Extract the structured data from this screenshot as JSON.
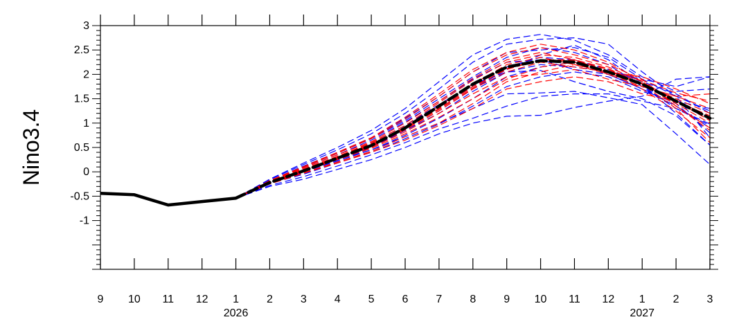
{
  "chart_data": {
    "type": "line",
    "ylabel": "Nino3.4",
    "xlabel": "",
    "title": "",
    "ylim": [
      -2.0,
      3.0
    ],
    "x_tick_labels": [
      "9",
      "10",
      "11",
      "12",
      "1",
      "2",
      "3",
      "4",
      "5",
      "6",
      "7",
      "8",
      "9",
      "10",
      "11",
      "12",
      "1",
      "2",
      "3"
    ],
    "year_labels": [
      {
        "text": "2026",
        "at_month_index": 4
      },
      {
        "text": "2027",
        "at_month_index": 16
      }
    ],
    "y_tick_labels": [
      "3",
      "2.5",
      "2",
      "1.5",
      "1",
      "0.5",
      "0",
      "-0.5",
      "-1"
    ],
    "y_tick_values": [
      3,
      2.5,
      2,
      1.5,
      1,
      0.5,
      0,
      -0.5,
      -1
    ],
    "observed": {
      "month_index": [
        0,
        1,
        2,
        3,
        4
      ],
      "values": [
        -0.44,
        -0.47,
        -0.68,
        -0.61,
        -0.54
      ],
      "color": "#000000"
    },
    "ensemble_mean": {
      "month_index": [
        4,
        5,
        6,
        7,
        8,
        9,
        10,
        11,
        12,
        13,
        14,
        15,
        16,
        17,
        18
      ],
      "values": [
        -0.54,
        -0.22,
        0.02,
        0.28,
        0.54,
        0.9,
        1.35,
        1.8,
        2.15,
        2.28,
        2.25,
        2.05,
        1.8,
        1.45,
        1.1
      ],
      "color": "#000000"
    },
    "colors": {
      "blue_members": "#0000ff",
      "red_members": "#ff0000"
    },
    "members": [
      {
        "color": "blue",
        "values": [
          -0.54,
          -0.3,
          -0.15,
          0.05,
          0.25,
          0.5,
          0.78,
          1.0,
          1.14,
          1.16,
          1.32,
          1.45,
          1.55,
          1.9,
          1.95
        ]
      },
      {
        "color": "blue",
        "values": [
          -0.54,
          -0.28,
          -0.1,
          0.12,
          0.35,
          0.6,
          0.88,
          1.1,
          1.35,
          1.55,
          1.6,
          1.6,
          1.45,
          1.3,
          0.98
        ]
      },
      {
        "color": "blue",
        "values": [
          -0.54,
          -0.25,
          0.0,
          0.22,
          0.45,
          0.72,
          1.0,
          1.3,
          1.6,
          1.62,
          1.65,
          1.52,
          1.38,
          0.78,
          0.15
        ]
      },
      {
        "color": "blue",
        "values": [
          -0.54,
          -0.22,
          0.05,
          0.3,
          0.6,
          0.95,
          1.38,
          1.8,
          2.05,
          2.08,
          1.85,
          1.65,
          1.5,
          1.15,
          0.55
        ]
      },
      {
        "color": "blue",
        "values": [
          -0.54,
          -0.2,
          0.08,
          0.35,
          0.65,
          1.02,
          1.45,
          1.9,
          2.25,
          2.3,
          2.1,
          2.0,
          1.7,
          1.4,
          0.8
        ]
      },
      {
        "color": "blue",
        "values": [
          -0.54,
          -0.18,
          0.12,
          0.4,
          0.7,
          1.1,
          1.55,
          2.05,
          2.45,
          2.5,
          2.55,
          2.35,
          1.9,
          1.75,
          1.95
        ]
      },
      {
        "color": "blue",
        "values": [
          -0.54,
          -0.16,
          0.15,
          0.45,
          0.78,
          1.2,
          1.7,
          2.25,
          2.62,
          2.72,
          2.75,
          2.62,
          2.05,
          1.55,
          1.25
        ]
      },
      {
        "color": "blue",
        "values": [
          -0.54,
          -0.15,
          0.18,
          0.5,
          0.85,
          1.3,
          1.85,
          2.4,
          2.72,
          2.82,
          2.7,
          2.4,
          1.95,
          1.65,
          1.7
        ]
      },
      {
        "color": "blue",
        "values": [
          -0.54,
          -0.22,
          0.0,
          0.25,
          0.45,
          0.75,
          1.1,
          1.5,
          1.95,
          2.15,
          2.25,
          2.0,
          1.7,
          1.35,
          0.9
        ]
      },
      {
        "color": "blue",
        "values": [
          -0.54,
          -0.2,
          0.04,
          0.28,
          0.52,
          0.85,
          1.25,
          1.7,
          2.1,
          2.4,
          2.6,
          2.3,
          1.8,
          1.2,
          0.55
        ]
      },
      {
        "color": "blue",
        "values": [
          -0.54,
          -0.24,
          -0.05,
          0.18,
          0.4,
          0.68,
          0.98,
          1.35,
          1.75,
          1.95,
          2.05,
          1.95,
          1.65,
          1.45,
          1.3
        ]
      },
      {
        "color": "blue",
        "values": [
          -0.54,
          -0.19,
          0.1,
          0.38,
          0.68,
          1.05,
          1.5,
          1.95,
          2.35,
          2.55,
          2.45,
          2.2,
          1.75,
          1.3,
          0.95
        ]
      },
      {
        "color": "blue",
        "values": [
          -0.54,
          -0.21,
          0.02,
          0.27,
          0.55,
          0.9,
          1.3,
          1.75,
          2.15,
          2.35,
          2.3,
          2.1,
          1.85,
          1.6,
          1.2
        ]
      },
      {
        "color": "blue",
        "values": [
          -0.54,
          -0.23,
          0.0,
          0.24,
          0.5,
          0.85,
          1.2,
          1.65,
          2.05,
          2.2,
          2.15,
          2.05,
          1.9,
          1.55,
          0.7
        ]
      },
      {
        "color": "red",
        "values": [
          -0.54,
          -0.22,
          0.03,
          0.28,
          0.5,
          0.82,
          1.2,
          1.6,
          1.95,
          2.0,
          2.1,
          1.9,
          1.75,
          1.55,
          1.6
        ]
      },
      {
        "color": "red",
        "values": [
          -0.54,
          -0.2,
          0.06,
          0.32,
          0.6,
          0.95,
          1.42,
          1.88,
          2.25,
          2.4,
          2.35,
          2.15,
          1.85,
          1.45,
          1.05
        ]
      },
      {
        "color": "red",
        "values": [
          -0.54,
          -0.18,
          0.1,
          0.38,
          0.68,
          1.08,
          1.55,
          2.05,
          2.4,
          2.55,
          2.4,
          2.2,
          1.9,
          1.35,
          0.85
        ]
      },
      {
        "color": "red",
        "values": [
          -0.54,
          -0.24,
          -0.02,
          0.2,
          0.42,
          0.72,
          1.0,
          1.4,
          1.85,
          2.05,
          2.2,
          2.05,
          1.95,
          1.7,
          1.4
        ]
      },
      {
        "color": "red",
        "values": [
          -0.54,
          -0.21,
          0.04,
          0.3,
          0.56,
          0.9,
          1.3,
          1.75,
          2.1,
          2.3,
          2.28,
          2.1,
          1.8,
          1.5,
          1.2
        ]
      },
      {
        "color": "red",
        "values": [
          -0.54,
          -0.19,
          0.08,
          0.35,
          0.62,
          1.0,
          1.45,
          1.92,
          2.3,
          2.45,
          2.3,
          2.05,
          1.7,
          1.25,
          0.7
        ]
      },
      {
        "color": "red",
        "values": [
          -0.54,
          -0.23,
          0.01,
          0.25,
          0.48,
          0.78,
          1.12,
          1.5,
          1.9,
          2.15,
          2.25,
          2.0,
          1.75,
          1.55,
          1.3
        ]
      },
      {
        "color": "red",
        "values": [
          -0.54,
          -0.2,
          0.05,
          0.31,
          0.58,
          0.92,
          1.35,
          1.8,
          2.2,
          2.35,
          2.2,
          2.0,
          1.82,
          1.4,
          1.0
        ]
      },
      {
        "color": "red",
        "values": [
          -0.54,
          -0.22,
          0.02,
          0.26,
          0.52,
          0.86,
          1.25,
          1.7,
          2.05,
          2.25,
          2.15,
          2.05,
          1.88,
          1.62,
          1.45
        ]
      },
      {
        "color": "red",
        "values": [
          -0.54,
          -0.18,
          0.11,
          0.4,
          0.7,
          1.12,
          1.6,
          2.1,
          2.45,
          2.62,
          2.5,
          2.25,
          1.85,
          1.35,
          0.9
        ]
      },
      {
        "color": "red",
        "values": [
          -0.54,
          -0.25,
          -0.03,
          0.18,
          0.4,
          0.65,
          0.95,
          1.3,
          1.7,
          1.85,
          1.95,
          1.85,
          1.6,
          1.45,
          1.15
        ]
      },
      {
        "color": "red",
        "values": [
          -0.54,
          -0.21,
          0.03,
          0.28,
          0.54,
          0.88,
          1.28,
          1.72,
          2.12,
          2.3,
          2.3,
          2.12,
          1.8,
          1.3,
          0.6
        ]
      }
    ]
  }
}
